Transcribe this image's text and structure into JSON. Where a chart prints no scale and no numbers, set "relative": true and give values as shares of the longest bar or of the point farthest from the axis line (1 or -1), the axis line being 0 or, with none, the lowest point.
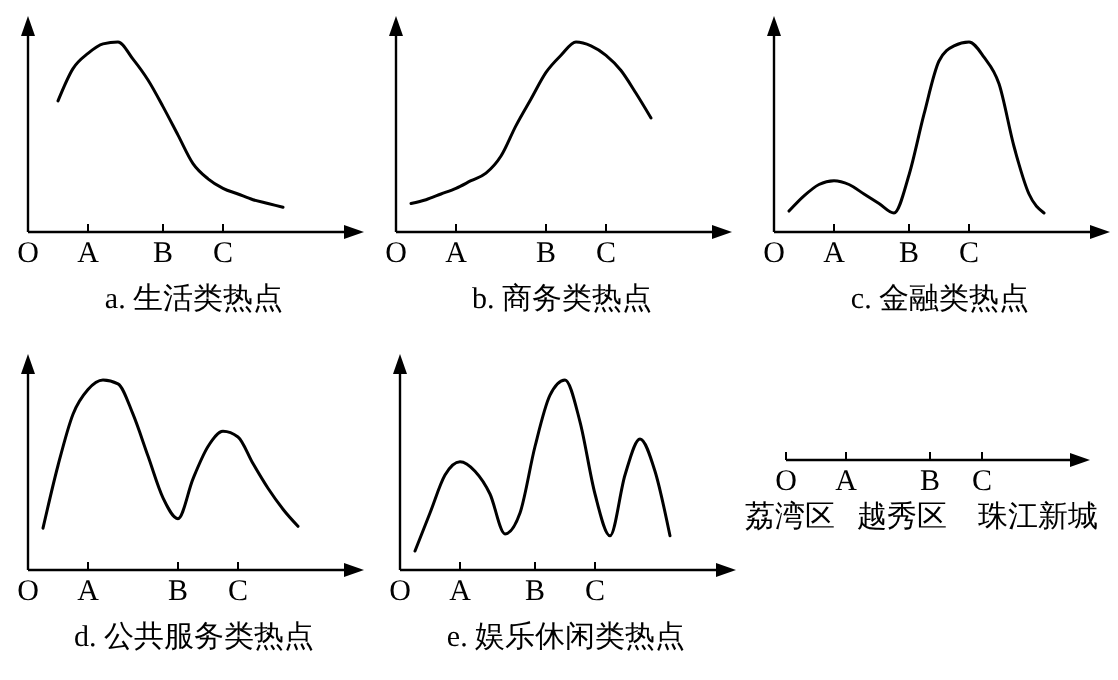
{
  "chart_data": [
    {
      "type": "line",
      "title": "a. 生活类热点",
      "relative": true,
      "tick_labels": "x",
      "categories": [
        "O",
        null,
        null,
        null,
        "A",
        null,
        null,
        null,
        null,
        "B",
        null,
        null,
        null,
        "C",
        null,
        null,
        null,
        null,
        null,
        null,
        null
      ],
      "series": [
        {
          "color": "#000000",
          "values": [
            null,
            null,
            0.69,
            0.86,
            0.94,
            0.99,
            1.0,
            0.91,
            0.8,
            0.66,
            0.51,
            0.36,
            0.28,
            0.23,
            0.2,
            0.17,
            0.15,
            0.13,
            null,
            null,
            null
          ]
        }
      ]
    },
    {
      "type": "line",
      "title": "b. 商务类热点",
      "relative": true,
      "tick_labels": "x",
      "categories": [
        "O",
        null,
        null,
        null,
        "A",
        null,
        null,
        null,
        null,
        null,
        "B",
        null,
        null,
        null,
        "C",
        null,
        null,
        null,
        null,
        null,
        null
      ],
      "series": [
        {
          "color": "#000000",
          "values": [
            null,
            0.15,
            0.17,
            0.2,
            0.23,
            0.27,
            0.31,
            0.4,
            0.56,
            0.7,
            0.84,
            0.93,
            1.0,
            0.98,
            0.93,
            0.85,
            0.73,
            0.6,
            null,
            null,
            null
          ]
        }
      ]
    },
    {
      "type": "line",
      "title": "c. 金融类热点",
      "relative": true,
      "tick_labels": "x",
      "categories": [
        "O",
        null,
        null,
        null,
        "A",
        null,
        null,
        null,
        null,
        "B",
        null,
        null,
        null,
        "C",
        null,
        null,
        null,
        null,
        null,
        null,
        null
      ],
      "series": [
        {
          "color": "#000000",
          "values": [
            null,
            0.11,
            0.19,
            0.25,
            0.27,
            0.25,
            0.2,
            0.15,
            0.1,
            0.3,
            0.62,
            0.9,
            0.98,
            1.0,
            0.92,
            0.78,
            0.45,
            0.2,
            0.1,
            null,
            null
          ]
        }
      ]
    },
    {
      "type": "line",
      "title": "d. 公共服务类热点",
      "relative": true,
      "tick_labels": "x",
      "categories": [
        "O",
        null,
        null,
        null,
        "A",
        null,
        null,
        null,
        null,
        null,
        "B",
        null,
        null,
        null,
        "C",
        null,
        null,
        null,
        null,
        null,
        null
      ],
      "series": [
        {
          "color": "#000000",
          "values": [
            null,
            0.22,
            0.55,
            0.82,
            0.95,
            1.0,
            0.98,
            0.82,
            0.6,
            0.38,
            0.27,
            0.48,
            0.65,
            0.73,
            0.7,
            0.56,
            0.43,
            0.32,
            0.23,
            null,
            null
          ]
        }
      ]
    },
    {
      "type": "line",
      "title": "e. 娱乐休闲类热点",
      "relative": true,
      "tick_labels": "x",
      "categories": [
        "O",
        null,
        null,
        null,
        "A",
        null,
        null,
        null,
        null,
        "B",
        null,
        null,
        null,
        "C",
        null,
        null,
        null,
        null,
        null,
        null,
        null
      ],
      "series": [
        {
          "color": "#000000",
          "values": [
            null,
            0.1,
            0.3,
            0.5,
            0.57,
            0.52,
            0.4,
            0.19,
            0.3,
            0.65,
            0.92,
            1.0,
            0.78,
            0.4,
            0.18,
            0.5,
            0.69,
            0.52,
            0.18,
            null,
            null
          ]
        }
      ]
    },
    {
      "type": "other",
      "annotations": [
        "O",
        "A",
        "B",
        "C",
        "荔湾区",
        "越秀区",
        "珠江新城"
      ]
    }
  ]
}
